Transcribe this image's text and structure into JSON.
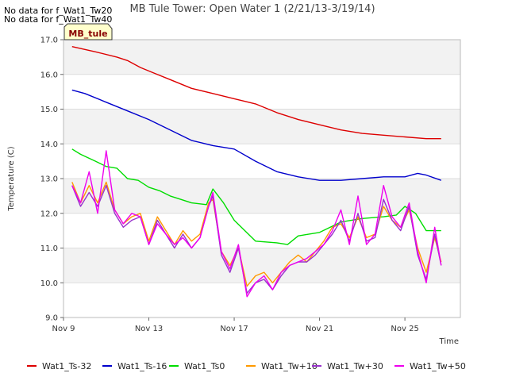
{
  "no_data_notes": [
    "No data for f_Wat1_Tw20",
    "No data for f_Wat1_Tw40"
  ],
  "site_badge": "MB_tule",
  "chart_data": {
    "type": "line",
    "title": "MB Tule Tower: Open Water 1 (2/21/13-3/19/14)",
    "xlabel": "Time",
    "ylabel": "Temperature (C)",
    "xlim": [
      9,
      27.6
    ],
    "ylim": [
      9.0,
      17.0
    ],
    "x_ticks": [
      9,
      13,
      17,
      21,
      25
    ],
    "x_tick_labels": [
      "Nov 9",
      "Nov 13",
      "Nov 17",
      "Nov 21",
      "Nov 25"
    ],
    "y_ticks": [
      9.0,
      10.0,
      11.0,
      12.0,
      13.0,
      14.0,
      15.0,
      16.0,
      17.0
    ],
    "y_tick_labels": [
      "9.0",
      "10.0",
      "11.0",
      "12.0",
      "13.0",
      "14.0",
      "15.0",
      "16.0",
      "17.0"
    ],
    "x_unit": "day of November",
    "series": [
      {
        "name": "Wat1_Ts-32",
        "color": "#dd0000",
        "x": [
          9.4,
          10.5,
          11.5,
          12.0,
          12.6,
          13.2,
          14.0,
          15.0,
          16.0,
          17.0,
          18.0,
          19.0,
          20.0,
          21.0,
          22.0,
          23.0,
          24.0,
          25.0,
          26.0,
          26.7
        ],
        "values": [
          16.8,
          16.65,
          16.5,
          16.4,
          16.2,
          16.05,
          15.85,
          15.6,
          15.45,
          15.3,
          15.15,
          14.9,
          14.7,
          14.55,
          14.4,
          14.3,
          14.25,
          14.2,
          14.15,
          14.15
        ]
      },
      {
        "name": "Wat1_Ts-16",
        "color": "#0000cc",
        "x": [
          9.4,
          10.0,
          11.0,
          12.0,
          13.0,
          14.0,
          15.0,
          16.0,
          17.0,
          18.0,
          19.0,
          20.0,
          21.0,
          22.0,
          23.0,
          24.0,
          25.0,
          25.6,
          26.0,
          26.7
        ],
        "values": [
          15.55,
          15.45,
          15.2,
          14.95,
          14.7,
          14.4,
          14.1,
          13.95,
          13.85,
          13.5,
          13.2,
          13.05,
          12.95,
          12.95,
          13.0,
          13.05,
          13.05,
          13.15,
          13.1,
          12.95
        ]
      },
      {
        "name": "Wat1_Ts0",
        "color": "#00dd00",
        "x": [
          9.4,
          9.8,
          10.5,
          11.0,
          11.5,
          12.0,
          12.5,
          13.0,
          13.5,
          14.0,
          14.5,
          15.0,
          15.7,
          16.0,
          16.5,
          17.0,
          17.5,
          18.0,
          19.0,
          19.5,
          20.0,
          21.0,
          22.0,
          23.0,
          24.0,
          24.6,
          25.0,
          25.5,
          26.0,
          26.7
        ],
        "values": [
          13.85,
          13.7,
          13.5,
          13.35,
          13.3,
          13.0,
          12.95,
          12.75,
          12.65,
          12.5,
          12.4,
          12.3,
          12.25,
          12.7,
          12.3,
          11.8,
          11.5,
          11.2,
          11.15,
          11.1,
          11.35,
          11.45,
          11.75,
          11.85,
          11.9,
          11.95,
          12.2,
          12.0,
          11.5,
          11.5
        ]
      },
      {
        "name": "Wat1_Tw+10",
        "color": "#ff9900",
        "x": [
          9.4,
          9.8,
          10.2,
          10.6,
          11.0,
          11.4,
          11.8,
          12.2,
          12.6,
          13.0,
          13.4,
          13.8,
          14.2,
          14.6,
          15.0,
          15.4,
          15.8,
          16.0,
          16.4,
          16.8,
          17.2,
          17.6,
          18.0,
          18.4,
          18.8,
          19.2,
          19.6,
          20.0,
          20.4,
          20.8,
          21.2,
          21.6,
          22.0,
          22.4,
          22.8,
          23.2,
          23.6,
          24.0,
          24.4,
          24.8,
          25.2,
          25.6,
          26.0,
          26.4,
          26.7
        ],
        "values": [
          12.9,
          12.3,
          12.8,
          12.3,
          12.9,
          12.1,
          11.7,
          11.9,
          12.0,
          11.2,
          11.9,
          11.5,
          11.1,
          11.5,
          11.2,
          11.4,
          12.3,
          12.4,
          10.9,
          10.5,
          11.0,
          9.9,
          10.2,
          10.3,
          10.0,
          10.3,
          10.6,
          10.8,
          10.6,
          10.9,
          11.2,
          11.6,
          11.7,
          11.3,
          11.9,
          11.3,
          11.4,
          12.2,
          11.8,
          11.6,
          12.1,
          11.0,
          10.3,
          11.3,
          10.6
        ]
      },
      {
        "name": "Wat1_Tw+30",
        "color": "#9933cc",
        "x": [
          9.4,
          9.8,
          10.2,
          10.6,
          11.0,
          11.4,
          11.8,
          12.2,
          12.6,
          13.0,
          13.4,
          13.8,
          14.2,
          14.6,
          15.0,
          15.4,
          15.8,
          16.0,
          16.4,
          16.8,
          17.2,
          17.6,
          18.0,
          18.4,
          18.8,
          19.2,
          19.6,
          20.0,
          20.4,
          20.8,
          21.2,
          21.6,
          22.0,
          22.4,
          22.8,
          23.2,
          23.6,
          24.0,
          24.4,
          24.8,
          25.2,
          25.6,
          26.0,
          26.4,
          26.7
        ],
        "values": [
          12.8,
          12.2,
          12.6,
          12.2,
          12.8,
          12.0,
          11.6,
          11.8,
          11.9,
          11.1,
          11.8,
          11.4,
          11.0,
          11.4,
          11.0,
          11.3,
          12.2,
          12.5,
          10.8,
          10.3,
          11.0,
          9.7,
          10.0,
          10.1,
          9.8,
          10.2,
          10.5,
          10.6,
          10.6,
          10.8,
          11.1,
          11.4,
          11.8,
          11.2,
          12.0,
          11.2,
          11.3,
          12.4,
          11.8,
          11.5,
          12.2,
          10.8,
          10.1,
          11.4,
          10.5
        ]
      },
      {
        "name": "Wat1_Tw+50",
        "color": "#ee00ee",
        "x": [
          9.4,
          9.8,
          10.2,
          10.6,
          11.0,
          11.4,
          11.8,
          12.2,
          12.6,
          13.0,
          13.4,
          13.8,
          14.2,
          14.6,
          15.0,
          15.4,
          15.8,
          16.0,
          16.4,
          16.8,
          17.2,
          17.6,
          18.0,
          18.4,
          18.8,
          19.2,
          19.6,
          20.0,
          20.4,
          20.8,
          21.2,
          21.6,
          22.0,
          22.4,
          22.8,
          23.2,
          23.6,
          24.0,
          24.4,
          24.8,
          25.2,
          25.6,
          26.0,
          26.4,
          26.7
        ],
        "values": [
          12.8,
          12.3,
          13.2,
          12.0,
          13.8,
          12.1,
          11.7,
          12.0,
          11.9,
          11.1,
          11.7,
          11.4,
          11.1,
          11.3,
          11.0,
          11.3,
          12.2,
          12.6,
          10.9,
          10.4,
          11.1,
          9.6,
          10.0,
          10.2,
          9.8,
          10.3,
          10.5,
          10.6,
          10.7,
          10.9,
          11.1,
          11.5,
          12.1,
          11.1,
          12.5,
          11.1,
          11.4,
          12.8,
          11.9,
          11.6,
          12.3,
          10.9,
          10.0,
          11.6,
          10.5
        ]
      }
    ]
  }
}
